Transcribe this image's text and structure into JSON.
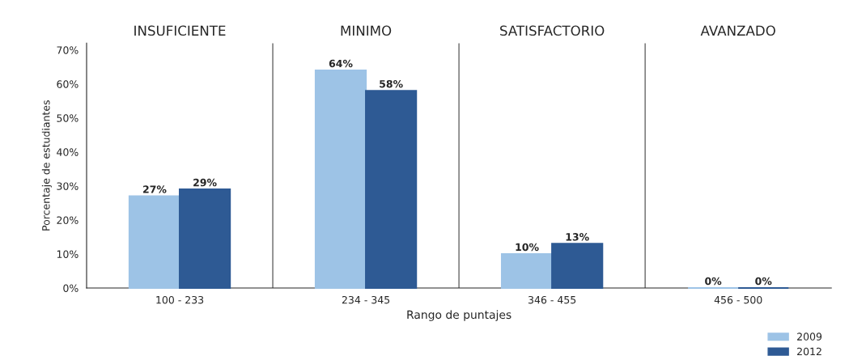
{
  "chart_data": {
    "type": "bar",
    "xlabel": "Rango de puntajes",
    "ylabel": "Porcentaje de estudiantes",
    "categories": [
      "100 - 233",
      "234 - 345",
      "346 - 455",
      "456 - 500"
    ],
    "series": [
      {
        "name": "2009",
        "color": "#9dc3e6",
        "values": [
          27,
          64,
          10,
          0
        ],
        "value_labels": [
          "27%",
          "64%",
          "10%",
          "0%"
        ]
      },
      {
        "name": "2012",
        "color": "#2e5a94",
        "values": [
          29,
          58,
          13,
          0
        ],
        "value_labels": [
          "29%",
          "58%",
          "13%",
          "0%"
        ]
      }
    ],
    "ylim": [
      0,
      72
    ],
    "yticks": [
      {
        "value": 0,
        "label": "0%"
      },
      {
        "value": 10,
        "label": "10%"
      },
      {
        "value": 20,
        "label": "20%"
      },
      {
        "value": 30,
        "label": "30%"
      },
      {
        "value": 40,
        "label": "40%"
      },
      {
        "value": 50,
        "label": "50%"
      },
      {
        "value": 60,
        "label": "60%"
      },
      {
        "value": 70,
        "label": "70%"
      }
    ],
    "annotations": [
      "INSUFICIENTE",
      "MINIMO",
      "SATISFACTORIO",
      "AVANZADO"
    ],
    "grid": false,
    "legend": "bottom right"
  }
}
